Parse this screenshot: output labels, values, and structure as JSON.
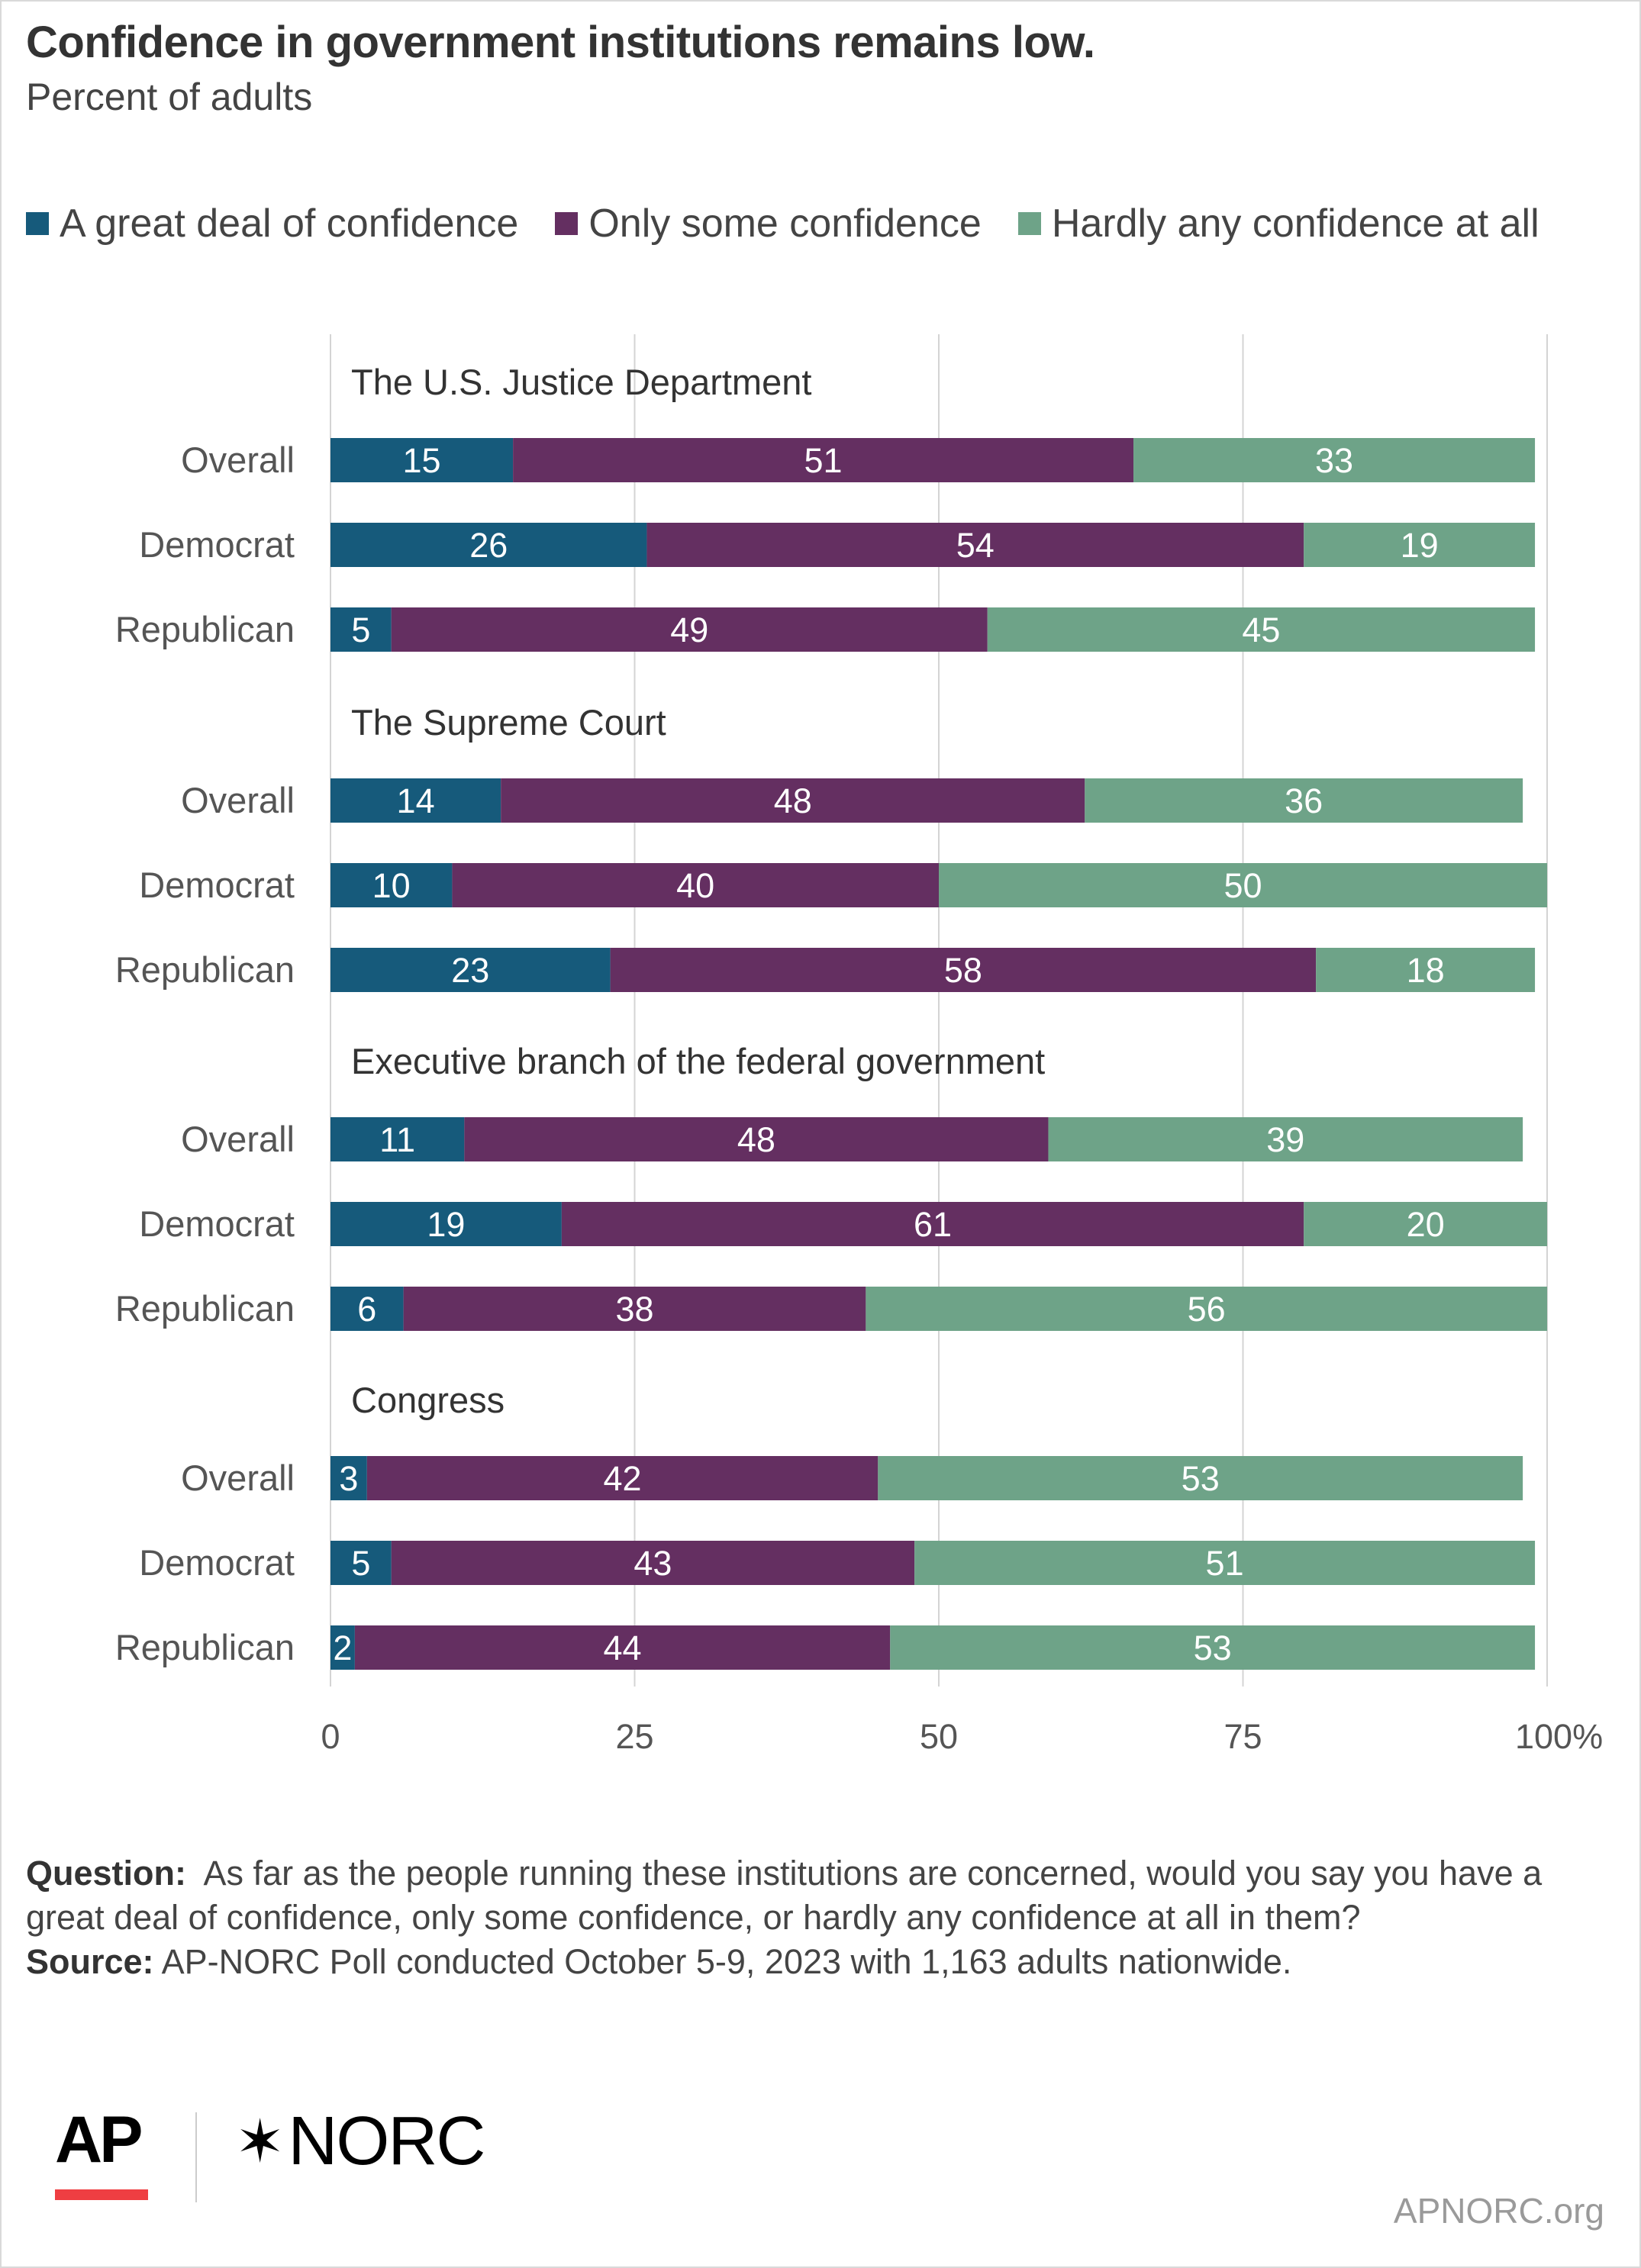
{
  "header": {
    "title": "Confidence in government institutions remains low.",
    "subtitle": "Percent of adults"
  },
  "chart_data": {
    "type": "bar",
    "orientation": "horizontal",
    "stacked": true,
    "title": "Confidence in government institutions remains low.",
    "subtitle": "Percent of adults",
    "legend_position": "top",
    "grid": true,
    "xlim": [
      0,
      100
    ],
    "x_ticks": [
      "0",
      "25",
      "50",
      "75",
      "100%"
    ],
    "series": [
      {
        "name": "A great deal of confidence",
        "color": "#165a7b"
      },
      {
        "name": "Only some confidence",
        "color": "#642f61"
      },
      {
        "name": "Hardly any confidence at all",
        "color": "#6ea388"
      }
    ],
    "groups": [
      {
        "name": "The U.S. Justice Department",
        "rows": [
          {
            "label": "Overall",
            "values": [
              15,
              51,
              33
            ]
          },
          {
            "label": "Democrat",
            "values": [
              26,
              54,
              19
            ]
          },
          {
            "label": "Republican",
            "values": [
              5,
              49,
              45
            ]
          }
        ]
      },
      {
        "name": "The Supreme Court",
        "rows": [
          {
            "label": "Overall",
            "values": [
              14,
              48,
              36
            ]
          },
          {
            "label": "Democrat",
            "values": [
              10,
              40,
              50
            ]
          },
          {
            "label": "Republican",
            "values": [
              23,
              58,
              18
            ]
          }
        ]
      },
      {
        "name": "Executive branch of the federal government",
        "rows": [
          {
            "label": "Overall",
            "values": [
              11,
              48,
              39
            ]
          },
          {
            "label": "Democrat",
            "values": [
              19,
              61,
              20
            ]
          },
          {
            "label": "Republican",
            "values": [
              6,
              38,
              56
            ]
          }
        ]
      },
      {
        "name": "Congress",
        "rows": [
          {
            "label": "Overall",
            "values": [
              3,
              42,
              53
            ]
          },
          {
            "label": "Democrat",
            "values": [
              5,
              43,
              51
            ]
          },
          {
            "label": "Republican",
            "values": [
              2,
              44,
              53
            ]
          }
        ]
      }
    ]
  },
  "notes": {
    "question_label": "Question:",
    "question_text": "As far as the people running these institutions are concerned, would you say you have a great deal of confidence, only some confidence, or hardly any confidence at all in them?",
    "source_label": "Source:",
    "source_text": "AP-NORC Poll conducted October 5-9, 2023 with 1,163 adults nationwide."
  },
  "branding": {
    "ap_logo": "AP",
    "norc_logo": "NORC",
    "norc_icon": "star-icon",
    "website": "APNORC.org",
    "ap_accent": "#ef3e42"
  }
}
